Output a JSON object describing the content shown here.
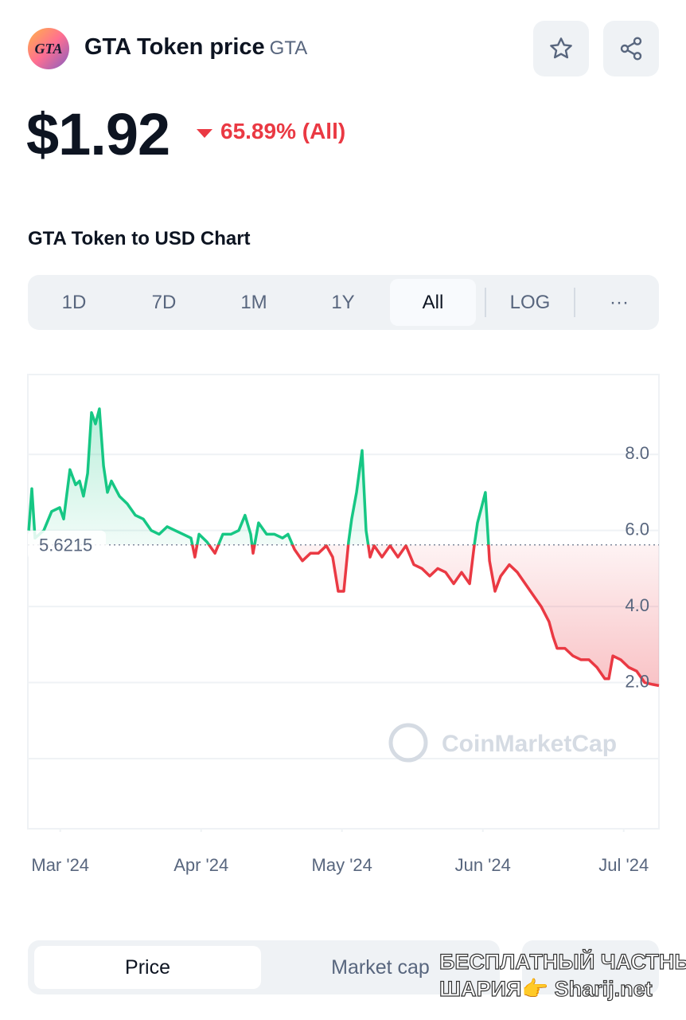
{
  "header": {
    "logo_text": "GTA",
    "title": "GTA Token price",
    "symbol": "GTA"
  },
  "price": {
    "value": "$1.92",
    "change": "65.89% (All)"
  },
  "chart_section_title": "GTA Token to USD Chart",
  "range_tabs": [
    "1D",
    "7D",
    "1M",
    "1Y",
    "All"
  ],
  "selected_range": "All",
  "scale_tab": "LOG",
  "more_tab": "···",
  "chart_data": {
    "type": "line",
    "x": [
      2.776,
      2.798,
      2.821,
      2.883,
      2.939,
      2.996,
      3.024,
      3.069,
      3.109,
      3.137,
      3.165,
      3.194,
      3.222,
      3.25,
      3.278,
      3.307,
      3.335,
      3.363,
      3.42,
      3.476,
      3.533,
      3.589,
      3.646,
      3.702,
      3.759,
      3.815,
      3.872,
      3.928,
      3.956,
      3.985,
      4.041,
      4.098,
      4.154,
      4.211,
      4.267,
      4.312,
      4.352,
      4.369,
      4.408,
      4.465,
      4.521,
      4.578,
      4.617,
      4.663,
      4.719,
      4.776,
      4.832,
      4.889,
      4.934,
      4.973,
      5.013,
      5.047,
      5.069,
      5.103,
      5.143,
      5.171,
      5.199,
      5.228,
      5.284,
      5.341,
      5.397,
      5.454,
      5.51,
      5.567,
      5.623,
      5.68,
      5.736,
      5.793,
      5.849,
      5.906,
      5.939,
      5.962,
      5.99,
      6.018,
      6.047,
      6.086,
      6.127,
      6.188,
      6.245,
      6.301,
      6.357,
      6.414,
      6.47,
      6.499,
      6.527,
      6.583,
      6.64,
      6.697,
      6.753,
      6.81,
      6.866,
      6.894,
      6.923,
      6.979,
      7.036,
      7.092,
      7.149,
      7.205,
      7.25
    ],
    "values": [
      6.0,
      7.1,
      5.8,
      6.0,
      6.5,
      6.6,
      6.3,
      7.6,
      7.2,
      7.3,
      6.9,
      7.5,
      9.1,
      8.8,
      9.2,
      7.7,
      7.0,
      7.3,
      6.9,
      6.7,
      6.4,
      6.3,
      6.0,
      5.9,
      6.1,
      6.0,
      5.9,
      5.8,
      5.3,
      5.9,
      5.7,
      5.4,
      5.9,
      5.9,
      6.0,
      6.4,
      5.9,
      5.4,
      6.2,
      5.9,
      5.9,
      5.8,
      5.9,
      5.5,
      5.2,
      5.4,
      5.4,
      5.6,
      5.3,
      4.4,
      4.4,
      5.7,
      6.3,
      7.0,
      8.1,
      6.0,
      5.3,
      5.6,
      5.3,
      5.6,
      5.3,
      5.6,
      5.1,
      5.0,
      4.8,
      5.0,
      4.9,
      4.6,
      4.9,
      4.6,
      5.6,
      6.2,
      6.6,
      7.0,
      5.2,
      4.4,
      4.8,
      5.1,
      4.9,
      4.6,
      4.3,
      4.0,
      3.6,
      3.2,
      2.9,
      2.9,
      2.7,
      2.6,
      2.6,
      2.4,
      2.1,
      2.1,
      2.7,
      2.6,
      2.4,
      2.3,
      2.0,
      1.95,
      1.92
    ],
    "baseline": 5.6215,
    "colors": {
      "up": "#16c784",
      "down": "#ea3943"
    },
    "xlim": [
      2.77,
      7.25
    ],
    "xticks": [
      {
        "value": 3,
        "label": "Mar '24"
      },
      {
        "value": 4,
        "label": "Apr '24"
      },
      {
        "value": 5,
        "label": "May '24"
      },
      {
        "value": 6,
        "label": "Jun '24"
      },
      {
        "value": 7,
        "label": "Jul '24"
      }
    ],
    "ylim": [
      0,
      10.1
    ],
    "yticks": [
      {
        "value": 2,
        "label": "2.0"
      },
      {
        "value": 4,
        "label": "4.0"
      },
      {
        "value": 6,
        "label": "6.0"
      },
      {
        "value": 8,
        "label": "8.0"
      }
    ],
    "grid": true,
    "watermark": "CoinMarketCap"
  },
  "bottom_tabs": [
    "Price",
    "Market cap"
  ],
  "selected_bottom_tab": "Price",
  "overlay_watermark": [
    "БЕСПЛАТНЫЙ ЧАСТНЫЙ",
    "ШАРИЯ👉 Sharij.net"
  ]
}
